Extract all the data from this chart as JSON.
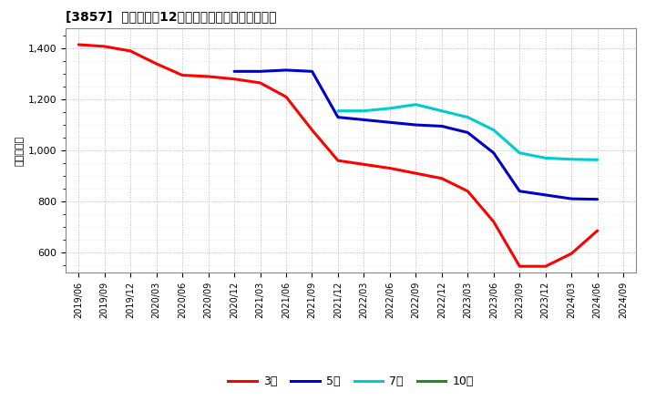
{
  "title": "[3857]  当期純利益12か月移動合計の平均値の推移",
  "ylabel": "（百万円）",
  "background_color": "#ffffff",
  "plot_bg_color": "#ffffff",
  "grid_color": "#aaaaaa",
  "ylim": [
    520,
    1480
  ],
  "yticks": [
    600,
    800,
    1000,
    1200,
    1400
  ],
  "ytick_labels": [
    "600",
    "800",
    "1,000",
    "1,200",
    "1,400"
  ],
  "xtick_labels": [
    "2019/06",
    "2019/09",
    "2019/12",
    "2020/03",
    "2020/06",
    "2020/09",
    "2020/12",
    "2021/03",
    "2021/06",
    "2021/09",
    "2021/12",
    "2022/03",
    "2022/06",
    "2022/09",
    "2022/12",
    "2023/03",
    "2023/06",
    "2023/09",
    "2023/12",
    "2024/03",
    "2024/06",
    "2024/09"
  ],
  "series": {
    "3年": {
      "color": "#ff0000",
      "linewidth": 2.2,
      "data_x": [
        0,
        1,
        2,
        3,
        4,
        5,
        6,
        7,
        8,
        9,
        10,
        11,
        12,
        13,
        14,
        15,
        16,
        17,
        18,
        19,
        20
      ],
      "data_y": [
        1415,
        1408,
        1390,
        1340,
        1295,
        1290,
        1280,
        1265,
        1210,
        1080,
        960,
        945,
        930,
        910,
        890,
        840,
        720,
        545,
        545,
        595,
        685
      ]
    },
    "5年": {
      "color": "#0000cc",
      "linewidth": 2.2,
      "data_x": [
        6,
        7,
        8,
        9,
        10,
        11,
        12,
        13,
        14,
        15,
        16,
        17,
        18,
        19,
        20
      ],
      "data_y": [
        1310,
        1310,
        1315,
        1310,
        1130,
        1120,
        1110,
        1100,
        1095,
        1070,
        990,
        840,
        825,
        810,
        808
      ]
    },
    "7年": {
      "color": "#00cccc",
      "linewidth": 2.2,
      "data_x": [
        10,
        11,
        12,
        13,
        14,
        15,
        16,
        17,
        18,
        19,
        20
      ],
      "data_y": [
        1155,
        1155,
        1165,
        1180,
        1155,
        1130,
        1080,
        990,
        970,
        965,
        963
      ]
    },
    "10年": {
      "color": "#228B22",
      "linewidth": 2.2,
      "data_x": [],
      "data_y": []
    }
  },
  "legend_entries": [
    "3年",
    "5年",
    "7年",
    "10年"
  ],
  "legend_colors": [
    "#ff0000",
    "#0000cc",
    "#00cccc",
    "#228B22"
  ]
}
